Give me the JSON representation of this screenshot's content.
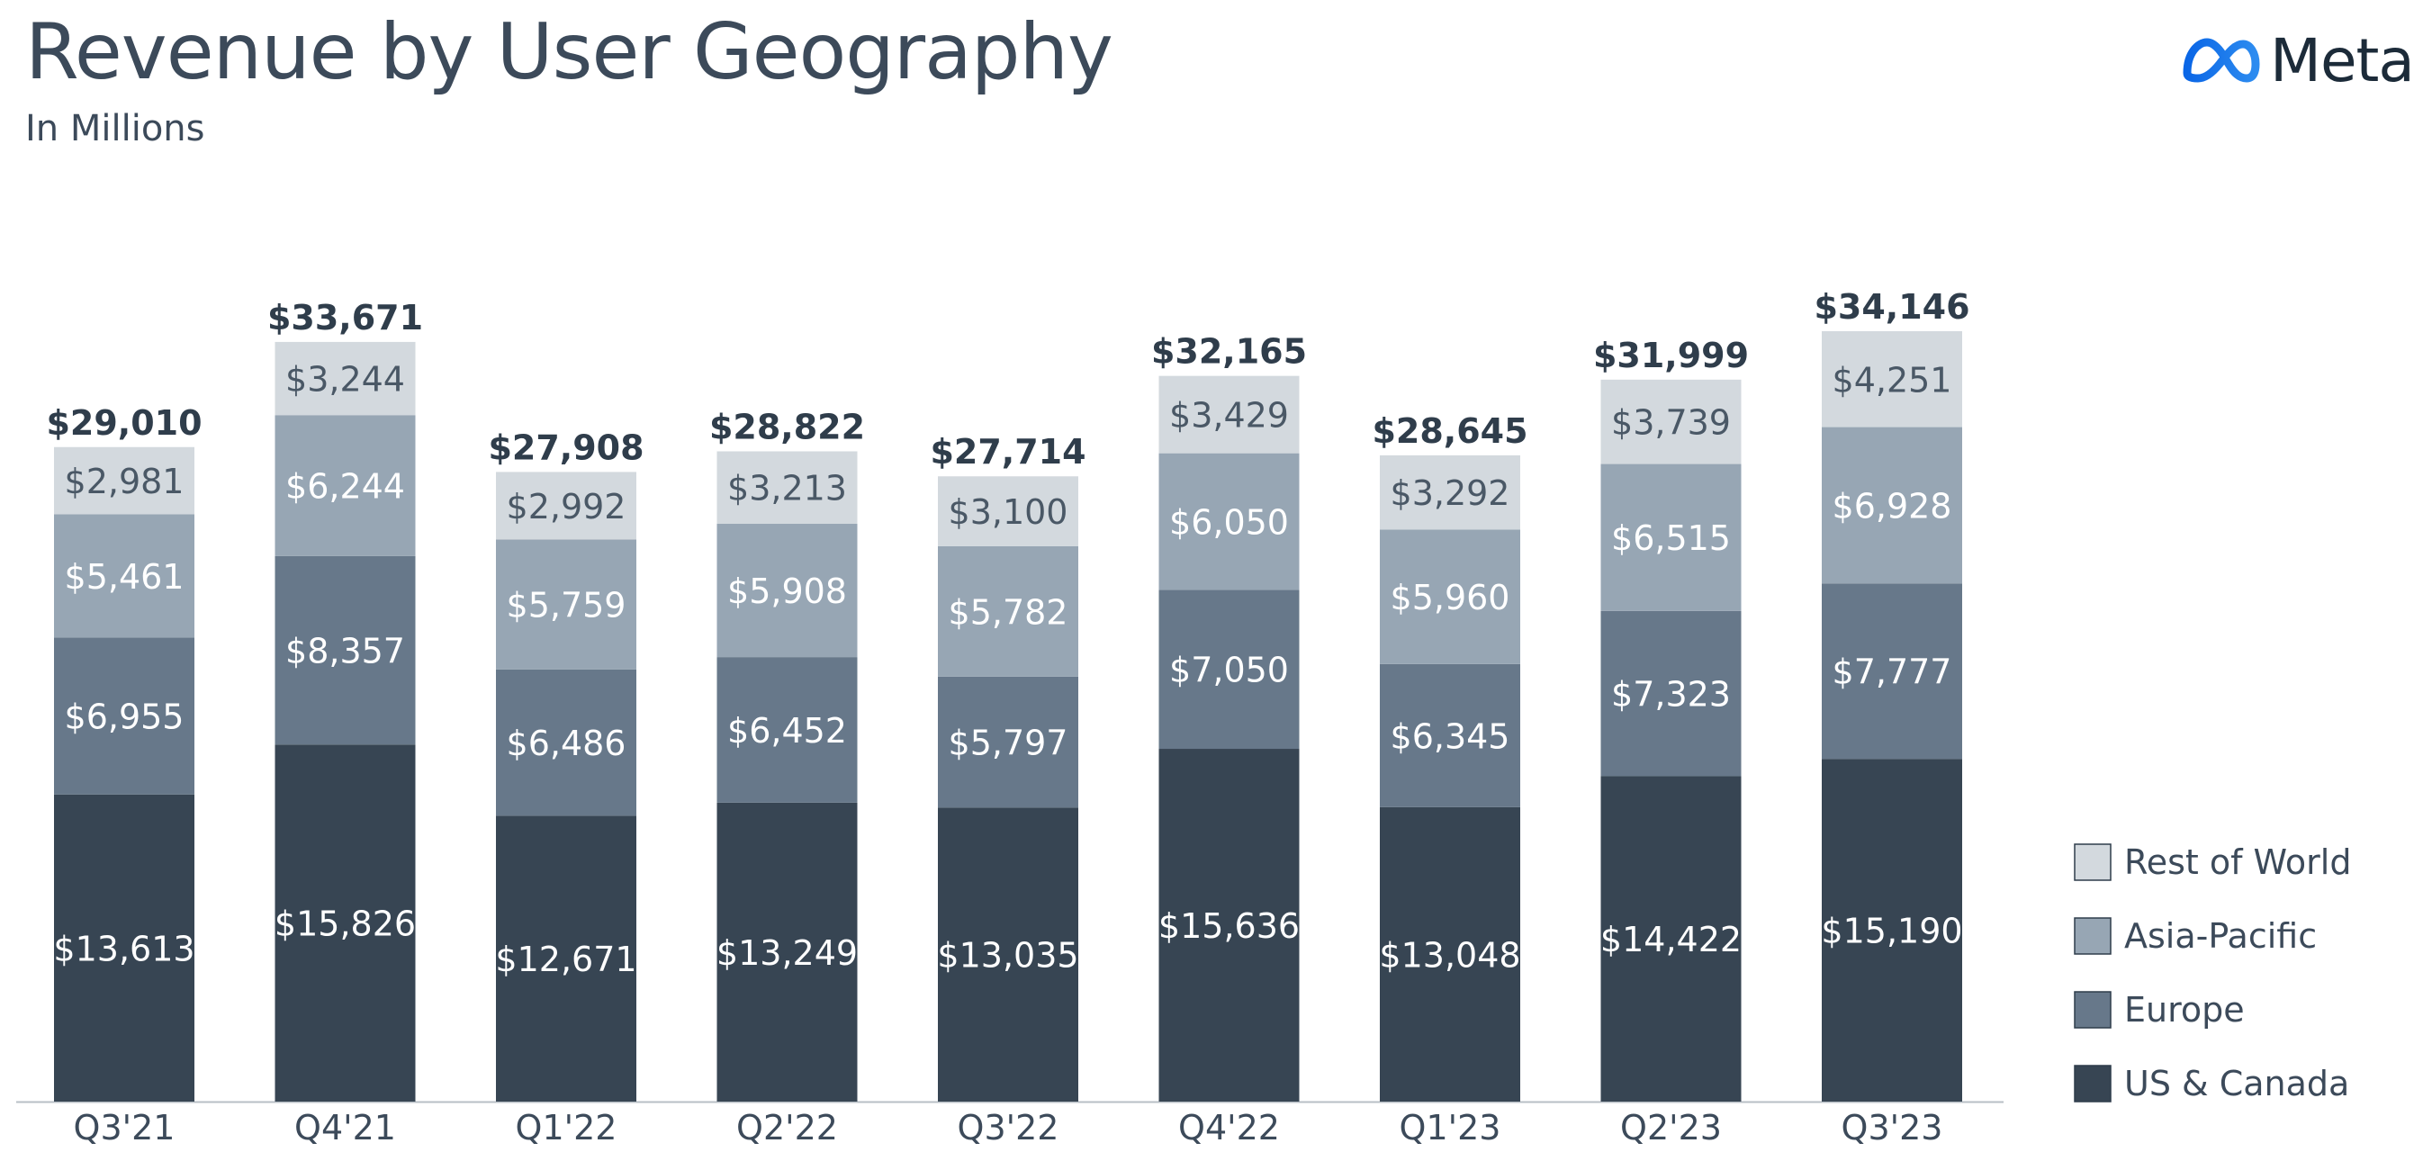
{
  "header": {
    "title": "Revenue by User Geography",
    "subtitle": "In Millions",
    "logo_text": "Meta"
  },
  "chart_data": {
    "type": "bar",
    "stacked": true,
    "title": "Revenue by User Geography",
    "subtitle": "In Millions",
    "categories": [
      "Q3'21",
      "Q4'21",
      "Q1'22",
      "Q2'22",
      "Q3'22",
      "Q4'22",
      "Q1'23",
      "Q2'23",
      "Q3'23"
    ],
    "series": [
      {
        "name": "US & Canada",
        "color": "#374553",
        "values": [
          13613,
          15826,
          12671,
          13249,
          13035,
          15636,
          13048,
          14422,
          15190
        ],
        "labels": [
          "$13,613",
          "$15,826",
          "$12,671",
          "$13,249",
          "$13,035",
          "$15,636",
          "$13,048",
          "$14,422",
          "$15,190"
        ]
      },
      {
        "name": "Europe",
        "color": "#67788a",
        "values": [
          6955,
          8357,
          6486,
          6452,
          5797,
          7050,
          6345,
          7323,
          7777
        ],
        "labels": [
          "$6,955",
          "$8,357",
          "$6,486",
          "$6,452",
          "$5,797",
          "$7,050",
          "$6,345",
          "$7,323",
          "$7,777"
        ]
      },
      {
        "name": "Asia-Pacific",
        "color": "#97a6b4",
        "values": [
          5461,
          6244,
          5759,
          5908,
          5782,
          6050,
          5960,
          6515,
          6928
        ],
        "labels": [
          "$5,461",
          "$6,244",
          "$5,759",
          "$5,908",
          "$5,782",
          "$6,050",
          "$5,960",
          "$6,515",
          "$6,928"
        ]
      },
      {
        "name": "Rest of World",
        "color": "#d3d9de",
        "values": [
          2981,
          3244,
          2992,
          3213,
          3100,
          3429,
          3292,
          3739,
          4251
        ],
        "labels": [
          "$2,981",
          "$3,244",
          "$2,992",
          "$3,213",
          "$3,100",
          "$3,429",
          "$3,292",
          "$3,739",
          "$4,251"
        ]
      }
    ],
    "totals": [
      29010,
      33671,
      27908,
      28822,
      27714,
      32165,
      28645,
      31999,
      34146
    ],
    "total_labels": [
      "$29,010",
      "$33,671",
      "$27,908",
      "$28,822",
      "$27,714",
      "$32,165",
      "$28,645",
      "$31,999",
      "$34,146"
    ],
    "legend": [
      "Rest of World",
      "Asia-Pacific",
      "Europe",
      "US & Canada"
    ],
    "legend_position": "bottom-right",
    "ylim": [
      0,
      34146
    ],
    "grid": false
  }
}
